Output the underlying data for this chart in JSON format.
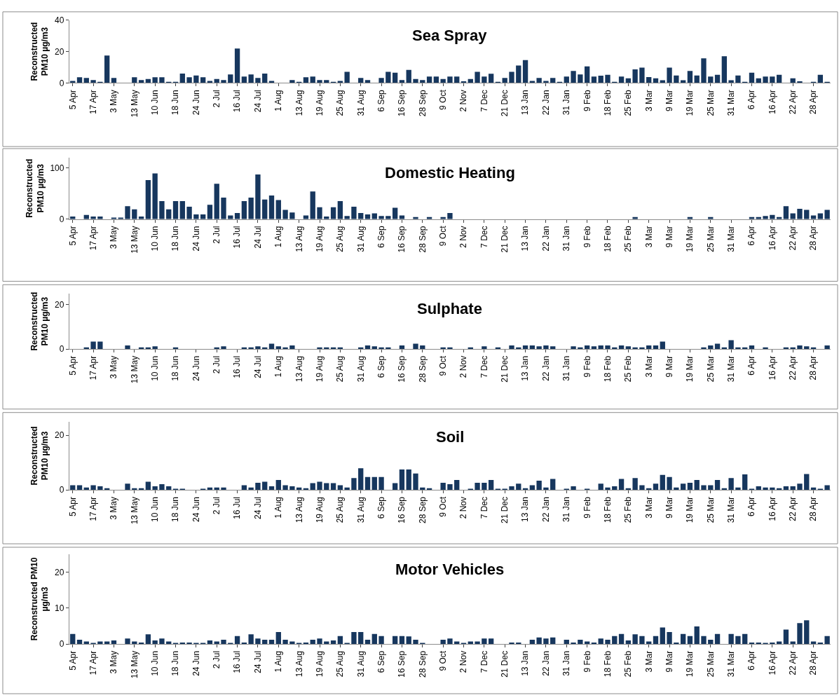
{
  "chart_data": [
    {
      "type": "bar",
      "title": "Sea Spray",
      "ylabel": "Reconstructed\nPM10 µg/m3",
      "color": "#17375e",
      "ylim": [
        0,
        40
      ],
      "yticks": [
        0,
        20,
        40
      ],
      "categories": [
        "5 Apr",
        null,
        null,
        "17 Apr",
        null,
        null,
        "3 May",
        null,
        null,
        "13 May",
        null,
        null,
        "10 Jun",
        null,
        null,
        "18 Jun",
        null,
        null,
        "24 Jun",
        null,
        null,
        "2 Jul",
        null,
        null,
        "16 Jul",
        null,
        null,
        "24 Jul",
        null,
        null,
        "1 Aug",
        null,
        null,
        "13 Aug",
        null,
        null,
        "19 Aug",
        null,
        null,
        "25 Aug",
        null,
        null,
        "31 Aug",
        null,
        null,
        "6 Sep",
        null,
        null,
        "16 Sep",
        null,
        null,
        "28 Sep",
        null,
        null,
        "9 Oct",
        null,
        null,
        "2 Nov",
        null,
        null,
        "7 Dec",
        null,
        null,
        "21 Dec",
        null,
        null,
        "13 Jan",
        null,
        null,
        "22 Jan",
        null,
        null,
        "31 Jan",
        null,
        null,
        "9 Feb",
        null,
        null,
        "18 Feb",
        null,
        null,
        "25 Feb",
        null,
        null,
        "3 Mar",
        null,
        null,
        "9 Mar",
        null,
        null,
        "19 Mar",
        null,
        null,
        "25 Mar",
        null,
        null,
        "31 Mar",
        null,
        null,
        "6 Apr",
        null,
        null,
        "16 Apr",
        null,
        null,
        "22 Apr",
        null,
        null,
        "28 Apr",
        null,
        null
      ],
      "values": [
        1.3,
        3.6,
        3.2,
        1.9,
        0.6,
        17.5,
        3.2,
        0,
        0,
        3.6,
        1.9,
        2.5,
        3.6,
        3.6,
        0.6,
        0.6,
        6.0,
        3.6,
        4.8,
        3.6,
        1.3,
        2.5,
        1.9,
        5.4,
        21.9,
        4.1,
        5.4,
        3.2,
        6.0,
        1.3,
        0,
        0,
        1.9,
        0.6,
        3.6,
        4.1,
        1.9,
        1.9,
        0.6,
        1.3,
        7.1,
        0,
        3.2,
        1.9,
        0,
        3.2,
        7.1,
        6.5,
        1.9,
        8.3,
        2.5,
        1.9,
        4.1,
        4.1,
        2.5,
        4.1,
        4.1,
        1.1,
        2.5,
        7.1,
        4.1,
        5.9,
        0.6,
        3.2,
        7.1,
        11.1,
        14.6,
        1.3,
        3.2,
        1.3,
        3.2,
        0.6,
        4.1,
        7.6,
        5.4,
        10.5,
        4.1,
        4.6,
        5.2,
        0.6,
        4.1,
        3.0,
        8.7,
        9.8,
        3.7,
        3.0,
        1.7,
        9.8,
        4.8,
        1.7,
        7.6,
        4.8,
        15.7,
        4.1,
        5.2,
        17,
        1.7,
        4.8,
        0.6,
        6.5,
        3.0,
        4.1,
        4.1,
        5.2,
        0,
        3.0,
        1.1,
        0,
        0.5,
        5.2,
        0.5
      ]
    },
    {
      "type": "bar",
      "title": "Domestic Heating",
      "ylabel": "Reconstructed\nPM10 µg/m3",
      "color": "#17375e",
      "ylim": [
        0,
        120
      ],
      "yticks": [
        0,
        100
      ],
      "categories": [
        "5 Apr",
        null,
        null,
        "17 Apr",
        null,
        null,
        "3 May",
        null,
        null,
        "13 May",
        null,
        null,
        "10 Jun",
        null,
        null,
        "18 Jun",
        null,
        null,
        "24 Jun",
        null,
        null,
        "2 Jul",
        null,
        null,
        "16 Jul",
        null,
        null,
        "24 Jul",
        null,
        null,
        "1 Aug",
        null,
        null,
        "13 Aug",
        null,
        null,
        "19 Aug",
        null,
        null,
        "25 Aug",
        null,
        null,
        "31 Aug",
        null,
        null,
        "6 Sep",
        null,
        null,
        "16 Sep",
        null,
        null,
        "28 Sep",
        null,
        null,
        "9 Oct",
        null,
        null,
        "2 Nov",
        null,
        null,
        "7 Dec",
        null,
        null,
        "21 Dec",
        null,
        null,
        "13 Jan",
        null,
        null,
        "22 Jan",
        null,
        null,
        "31 Jan",
        null,
        null,
        "9 Feb",
        null,
        null,
        "18 Feb",
        null,
        null,
        "25 Feb",
        null,
        null,
        "3 Mar",
        null,
        null,
        "9 Mar",
        null,
        null,
        "19 Mar",
        null,
        null,
        "25 Mar",
        null,
        null,
        "31 Mar",
        null,
        null,
        "6 Apr",
        null,
        null,
        "16 Apr",
        null,
        null,
        "22 Apr",
        null,
        null,
        "28 Apr",
        null,
        null
      ],
      "values": [
        5,
        0,
        8,
        5,
        5,
        0,
        3,
        3,
        25,
        19,
        5,
        76,
        89,
        35,
        19,
        35,
        35,
        24,
        9,
        9,
        28,
        69,
        42,
        7,
        12,
        35,
        42,
        87,
        38,
        46,
        37,
        18,
        13,
        0,
        7,
        54,
        23,
        5,
        23,
        35,
        6,
        24,
        12,
        9,
        11,
        6,
        6,
        22,
        7,
        0,
        4,
        0,
        4,
        0,
        4,
        12,
        0,
        0,
        0,
        0,
        0,
        0,
        0,
        0,
        0,
        0,
        0,
        0,
        0,
        0,
        0,
        0,
        0,
        0,
        0,
        0,
        0,
        0,
        0,
        0,
        0,
        0,
        4,
        0,
        0,
        0,
        0,
        0,
        0,
        0,
        4,
        0,
        0,
        4,
        0,
        0,
        0,
        0,
        0,
        4,
        4,
        6,
        8,
        4,
        25,
        11,
        20,
        18,
        7,
        11,
        18
      ]
    },
    {
      "type": "bar",
      "title": "Sulphate",
      "ylabel": "Reconstructed\nPM10 µg/m3",
      "color": "#17375e",
      "ylim": [
        0,
        25
      ],
      "yticks": [
        0,
        20
      ],
      "categories": [
        "5 Apr",
        null,
        null,
        "17 Apr",
        null,
        null,
        "3 May",
        null,
        null,
        "13 May",
        null,
        null,
        "10 Jun",
        null,
        null,
        "18 Jun",
        null,
        null,
        "24 Jun",
        null,
        null,
        "2 Jul",
        null,
        null,
        "16 Jul",
        null,
        null,
        "24 Jul",
        null,
        null,
        "1 Aug",
        null,
        null,
        "13 Aug",
        null,
        null,
        "19 Aug",
        null,
        null,
        "25 Aug",
        null,
        null,
        "31 Aug",
        null,
        null,
        "6 Sep",
        null,
        null,
        "16 Sep",
        null,
        null,
        "28 Sep",
        null,
        null,
        "9 Oct",
        null,
        null,
        "2 Nov",
        null,
        null,
        "7 Dec",
        null,
        null,
        "21 Dec",
        null,
        null,
        "13 Jan",
        null,
        null,
        "22 Jan",
        null,
        null,
        "31 Jan",
        null,
        null,
        "9 Feb",
        null,
        null,
        "18 Feb",
        null,
        null,
        "25 Feb",
        null,
        null,
        "3 Mar",
        null,
        null,
        "9 Mar",
        null,
        null,
        "19 Mar",
        null,
        null,
        "25 Mar",
        null,
        null,
        "31 Mar",
        null,
        null,
        "6 Apr",
        null,
        null,
        "16 Apr",
        null,
        null,
        "22 Apr",
        null,
        null,
        "28 Apr",
        null,
        null
      ],
      "values": [
        0,
        0,
        0.7,
        3.3,
        3.3,
        0,
        0,
        0,
        1.6,
        0,
        0.7,
        0.7,
        1.2,
        0,
        0,
        0.7,
        0,
        0,
        0,
        0,
        0,
        0.7,
        1.2,
        0,
        0,
        0.7,
        0.7,
        1.2,
        0.7,
        2.4,
        1.2,
        0.7,
        1.6,
        0,
        0,
        0,
        0.7,
        0.7,
        0.7,
        0.7,
        0,
        0,
        0.7,
        1.6,
        1.2,
        0.7,
        0.7,
        0,
        1.6,
        0,
        2.4,
        1.6,
        0,
        0,
        0.7,
        0.7,
        0,
        0,
        0.7,
        0,
        1.2,
        0,
        0.7,
        0,
        1.6,
        0.7,
        1.6,
        1.6,
        1.2,
        1.6,
        1.2,
        0,
        0,
        1.2,
        0.7,
        1.6,
        1.2,
        1.6,
        1.6,
        0.7,
        1.6,
        1.2,
        0.7,
        0.7,
        1.6,
        1.6,
        3.3,
        0,
        0,
        0,
        0,
        0,
        0.7,
        1.6,
        2.4,
        0.7,
        4.0,
        0.7,
        0.7,
        1.6,
        0,
        0.7,
        0,
        0,
        0.7,
        0.7,
        1.6,
        1.2,
        0.7,
        0,
        1.6
      ]
    },
    {
      "type": "bar",
      "title": "Soil",
      "ylabel": "Reconstructed\nPM10 µg/m3",
      "color": "#17375e",
      "ylim": [
        0,
        25
      ],
      "yticks": [
        0,
        20
      ],
      "categories": [
        "5 Apr",
        null,
        null,
        "17 Apr",
        null,
        null,
        "3 May",
        null,
        null,
        "13 May",
        null,
        null,
        "10 Jun",
        null,
        null,
        "18 Jun",
        null,
        null,
        "24 Jun",
        null,
        null,
        "2 Jul",
        null,
        null,
        "16 Jul",
        null,
        null,
        "24 Jul",
        null,
        null,
        "1 Aug",
        null,
        null,
        "13 Aug",
        null,
        null,
        "19 Aug",
        null,
        null,
        "25 Aug",
        null,
        null,
        "31 Aug",
        null,
        null,
        "6 Sep",
        null,
        null,
        "16 Sep",
        null,
        null,
        "28 Sep",
        null,
        null,
        "9 Oct",
        null,
        null,
        "2 Nov",
        null,
        null,
        "7 Dec",
        null,
        null,
        "21 Dec",
        null,
        null,
        "13 Jan",
        null,
        null,
        "22 Jan",
        null,
        null,
        "31 Jan",
        null,
        null,
        "9 Feb",
        null,
        null,
        "18 Feb",
        null,
        null,
        "25 Feb",
        null,
        null,
        "3 Mar",
        null,
        null,
        "9 Mar",
        null,
        null,
        "19 Mar",
        null,
        null,
        "25 Mar",
        null,
        null,
        "31 Mar",
        null,
        null,
        "6 Apr",
        null,
        null,
        "16 Apr",
        null,
        null,
        "22 Apr",
        null,
        null,
        "28 Apr",
        null,
        null
      ],
      "values": [
        1.7,
        1.7,
        0.9,
        1.7,
        1.3,
        0.6,
        0,
        0,
        2.3,
        0.6,
        0.6,
        3.0,
        1.3,
        2.1,
        1.3,
        0.4,
        0.4,
        0,
        0,
        0.4,
        0.9,
        0.9,
        0.9,
        0,
        0,
        1.7,
        0.9,
        2.6,
        3.0,
        1.3,
        3.6,
        1.7,
        1.3,
        0.9,
        0.6,
        2.5,
        3.0,
        2.5,
        2.5,
        1.7,
        0.9,
        4.3,
        7.9,
        4.7,
        4.7,
        4.7,
        0,
        2.5,
        7.5,
        7.5,
        6.0,
        0.9,
        0.6,
        0,
        2.6,
        2.1,
        3.6,
        0,
        0.4,
        2.6,
        2.6,
        3.6,
        0.4,
        0.4,
        1.3,
        2.3,
        0.6,
        1.7,
        3.4,
        0.9,
        4.0,
        0,
        0.4,
        1.3,
        0,
        0.4,
        0,
        2.3,
        0.9,
        1.3,
        4.0,
        0.6,
        4.3,
        1.7,
        0.6,
        2.3,
        5.5,
        4.7,
        0.9,
        2.3,
        2.6,
        3.6,
        1.7,
        1.7,
        3.6,
        0.6,
        4.3,
        0.9,
        5.7,
        0.4,
        1.3,
        0.9,
        0.9,
        0.6,
        1.3,
        1.3,
        2.3,
        5.8,
        0.9,
        0.4,
        1.7
      ]
    },
    {
      "type": "bar",
      "title": "Motor Vehicles",
      "ylabel": "Reconstructed PM10\nµg/m3",
      "color": "#17375e",
      "ylim": [
        0,
        25
      ],
      "yticks": [
        0,
        10,
        20
      ],
      "categories": [
        "5 Apr",
        null,
        null,
        "17 Apr",
        null,
        null,
        "3 May",
        null,
        null,
        "13 May",
        null,
        null,
        "10 Jun",
        null,
        null,
        "18 Jun",
        null,
        null,
        "24 Jun",
        null,
        null,
        "2 Jul",
        null,
        null,
        "16 Jul",
        null,
        null,
        "24 Jul",
        null,
        null,
        "1 Aug",
        null,
        null,
        "13 Aug",
        null,
        null,
        "19 Aug",
        null,
        null,
        "25 Aug",
        null,
        null,
        "31 Aug",
        null,
        null,
        "6 Sep",
        null,
        null,
        "16 Sep",
        null,
        null,
        "28 Sep",
        null,
        null,
        "9 Oct",
        null,
        null,
        "2 Nov",
        null,
        null,
        "7 Dec",
        null,
        null,
        "21 Dec",
        null,
        null,
        "13 Jan",
        null,
        null,
        "22 Jan",
        null,
        null,
        "31 Jan",
        null,
        null,
        "9 Feb",
        null,
        null,
        "18 Feb",
        null,
        null,
        "25 Feb",
        null,
        null,
        "3 Mar",
        null,
        null,
        "9 Mar",
        null,
        null,
        "19 Mar",
        null,
        null,
        "25 Mar",
        null,
        null,
        "31 Mar",
        null,
        null,
        "6 Apr",
        null,
        null,
        "16 Apr",
        null,
        null,
        "22 Apr",
        null,
        null,
        "28 Apr",
        null,
        null
      ],
      "values": [
        2.8,
        1.2,
        0.7,
        0.3,
        0.7,
        0.7,
        1.0,
        0,
        1.5,
        0.7,
        0.4,
        2.7,
        1.0,
        1.5,
        0.7,
        0.3,
        0.4,
        0.4,
        0.3,
        0.3,
        1.0,
        0.7,
        1.2,
        0.3,
        2.2,
        0.4,
        2.7,
        1.5,
        1.2,
        1.2,
        3.3,
        1.2,
        0.7,
        0.3,
        0.4,
        1.2,
        1.5,
        0.7,
        1.0,
        2.2,
        0.3,
        3.3,
        3.3,
        1.2,
        2.8,
        2.2,
        0,
        2.2,
        2.2,
        2.1,
        1.2,
        0.3,
        0,
        0,
        1.2,
        1.5,
        0.7,
        0.3,
        0.7,
        0.7,
        1.5,
        1.5,
        0,
        0,
        0.4,
        0.4,
        0,
        1.2,
        1.8,
        1.5,
        1.8,
        0,
        1.2,
        0.4,
        1.2,
        0.7,
        0.4,
        1.5,
        1.2,
        2.2,
        2.8,
        1.0,
        2.7,
        2.2,
        0.7,
        2.2,
        4.6,
        3.3,
        0.4,
        2.8,
        2.2,
        4.9,
        2.2,
        1.2,
        2.8,
        0,
        2.8,
        2.2,
        2.8,
        0.4,
        0.4,
        0.3,
        0.4,
        0.7,
        4.0,
        0.7,
        5.8,
        6.6,
        0.7,
        0.4,
        2.2
      ]
    }
  ]
}
